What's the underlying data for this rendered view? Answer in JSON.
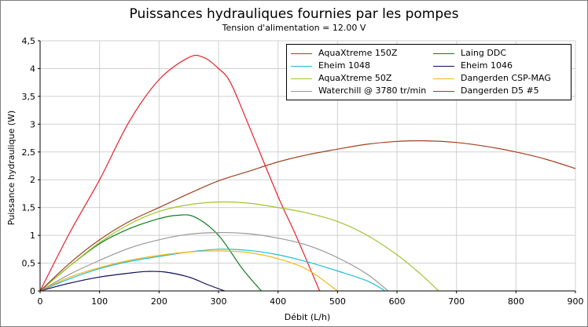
{
  "chart_data": {
    "type": "line",
    "title": "Puissances hydrauliques fournies par les pompes",
    "subtitle": "Tension d'alimentation = 12.00 V",
    "xlabel": "Débit (L/h)",
    "ylabel": "Puissance hydraulique (W)",
    "xlim": [
      0,
      900
    ],
    "ylim": [
      0,
      4.5
    ],
    "x_ticks": [
      "0",
      "100",
      "200",
      "300",
      "400",
      "500",
      "600",
      "700",
      "800",
      "900"
    ],
    "y_ticks": [
      "0",
      "0,5",
      "1",
      "1,5",
      "2",
      "2,5",
      "3",
      "3,5",
      "4",
      "4,5"
    ],
    "grid": true,
    "legend_position": "top-right",
    "series": [
      {
        "name": "AquaXtreme 150Z",
        "color": "#e8202a",
        "points": [
          [
            0,
            0
          ],
          [
            50,
            1.05
          ],
          [
            100,
            2.0
          ],
          [
            150,
            3.05
          ],
          [
            200,
            3.8
          ],
          [
            250,
            4.2
          ],
          [
            275,
            4.2
          ],
          [
            300,
            4.0
          ],
          [
            320,
            3.75
          ],
          [
            350,
            3.0
          ],
          [
            400,
            1.7
          ],
          [
            430,
            1.0
          ],
          [
            470,
            0
          ]
        ]
      },
      {
        "name": "Laing DDC",
        "color": "#0e7d1d",
        "points": [
          [
            0,
            0
          ],
          [
            50,
            0.45
          ],
          [
            100,
            0.85
          ],
          [
            150,
            1.12
          ],
          [
            200,
            1.3
          ],
          [
            230,
            1.36
          ],
          [
            260,
            1.33
          ],
          [
            300,
            1.0
          ],
          [
            340,
            0.4
          ],
          [
            372,
            0
          ]
        ]
      },
      {
        "name": "Eheim 1048",
        "color": "#1cbfd6",
        "points": [
          [
            0,
            0
          ],
          [
            50,
            0.22
          ],
          [
            100,
            0.4
          ],
          [
            150,
            0.53
          ],
          [
            200,
            0.62
          ],
          [
            250,
            0.7
          ],
          [
            300,
            0.75
          ],
          [
            350,
            0.73
          ],
          [
            400,
            0.65
          ],
          [
            450,
            0.52
          ],
          [
            500,
            0.36
          ],
          [
            550,
            0.18
          ],
          [
            580,
            0
          ]
        ]
      },
      {
        "name": "Eheim 1046",
        "color": "#0c0c5e",
        "points": [
          [
            0,
            0
          ],
          [
            50,
            0.14
          ],
          [
            100,
            0.25
          ],
          [
            150,
            0.32
          ],
          [
            180,
            0.35
          ],
          [
            210,
            0.34
          ],
          [
            250,
            0.25
          ],
          [
            280,
            0.12
          ],
          [
            310,
            0
          ]
        ]
      },
      {
        "name": "AquaXtreme 50Z",
        "color": "#9ec52c",
        "points": [
          [
            0,
            0
          ],
          [
            50,
            0.45
          ],
          [
            100,
            0.87
          ],
          [
            150,
            1.2
          ],
          [
            200,
            1.43
          ],
          [
            250,
            1.55
          ],
          [
            300,
            1.6
          ],
          [
            350,
            1.58
          ],
          [
            400,
            1.5
          ],
          [
            450,
            1.4
          ],
          [
            500,
            1.25
          ],
          [
            550,
            1.0
          ],
          [
            600,
            0.65
          ],
          [
            640,
            0.3
          ],
          [
            670,
            0
          ]
        ]
      },
      {
        "name": "Dangerden CSP-MAG",
        "color": "#f5b815",
        "points": [
          [
            0,
            0
          ],
          [
            50,
            0.25
          ],
          [
            100,
            0.42
          ],
          [
            150,
            0.55
          ],
          [
            200,
            0.64
          ],
          [
            250,
            0.7
          ],
          [
            300,
            0.72
          ],
          [
            350,
            0.69
          ],
          [
            400,
            0.58
          ],
          [
            450,
            0.38
          ],
          [
            500,
            0
          ]
        ]
      },
      {
        "name": "Waterchill @ 3780 tr/min",
        "color": "#989898",
        "points": [
          [
            0,
            0
          ],
          [
            50,
            0.3
          ],
          [
            100,
            0.55
          ],
          [
            150,
            0.77
          ],
          [
            200,
            0.92
          ],
          [
            250,
            1.02
          ],
          [
            300,
            1.05
          ],
          [
            350,
            1.03
          ],
          [
            400,
            0.95
          ],
          [
            450,
            0.82
          ],
          [
            500,
            0.6
          ],
          [
            550,
            0.3
          ],
          [
            585,
            0
          ]
        ]
      },
      {
        "name": "Dangerden D5 #5",
        "color": "#a0401e",
        "points": [
          [
            0,
            0
          ],
          [
            50,
            0.5
          ],
          [
            100,
            0.92
          ],
          [
            150,
            1.25
          ],
          [
            200,
            1.5
          ],
          [
            250,
            1.75
          ],
          [
            300,
            1.98
          ],
          [
            350,
            2.15
          ],
          [
            400,
            2.32
          ],
          [
            450,
            2.45
          ],
          [
            500,
            2.55
          ],
          [
            550,
            2.64
          ],
          [
            600,
            2.69
          ],
          [
            650,
            2.7
          ],
          [
            700,
            2.67
          ],
          [
            750,
            2.6
          ],
          [
            800,
            2.5
          ],
          [
            850,
            2.37
          ],
          [
            900,
            2.2
          ]
        ]
      }
    ]
  }
}
